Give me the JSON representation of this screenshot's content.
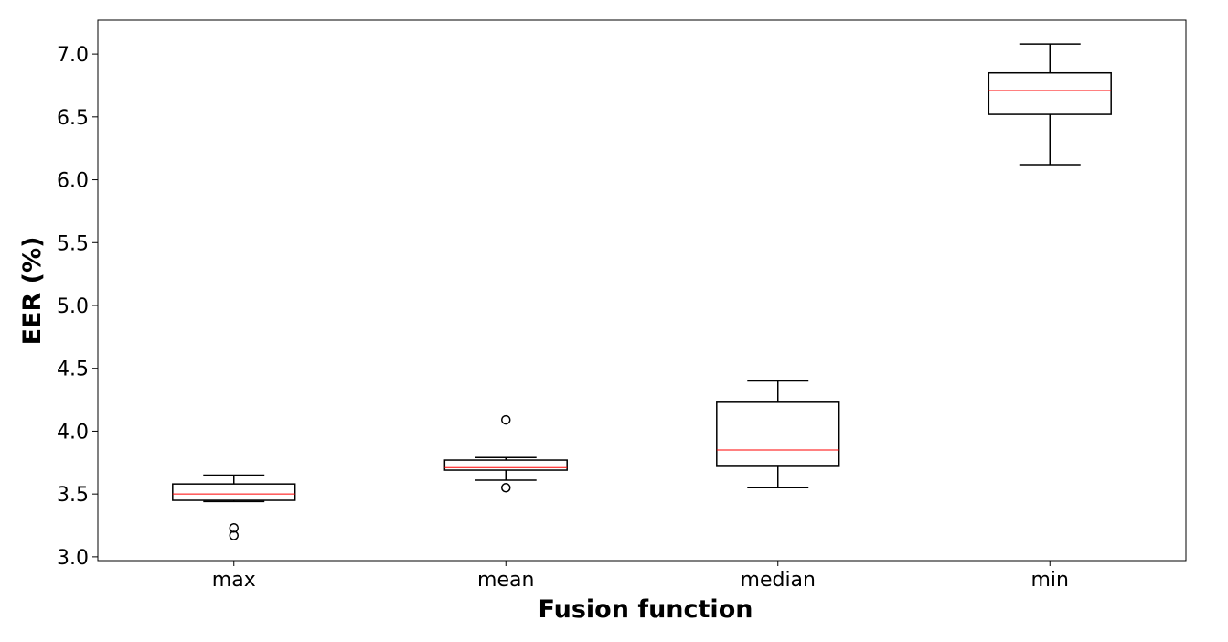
{
  "chart_data": {
    "type": "box",
    "title": "",
    "xlabel": "Fusion function",
    "ylabel": "EER (%)",
    "categories": [
      "max",
      "mean",
      "median",
      "min"
    ],
    "ylim": [
      2.97,
      7.27
    ],
    "yticks": [
      "3.0",
      "3.5",
      "4.0",
      "4.5",
      "5.0",
      "5.5",
      "6.0",
      "6.5",
      "7.0"
    ],
    "grid": false,
    "boxes": [
      {
        "category": "max",
        "whisker_low": 3.44,
        "q1": 3.45,
        "median": 3.5,
        "q3": 3.58,
        "whisker_high": 3.65,
        "outliers": [
          3.23,
          3.17
        ]
      },
      {
        "category": "mean",
        "whisker_low": 3.61,
        "q1": 3.69,
        "median": 3.71,
        "q3": 3.77,
        "whisker_high": 3.79,
        "outliers": [
          4.09,
          3.55
        ]
      },
      {
        "category": "median",
        "whisker_low": 3.55,
        "q1": 3.72,
        "median": 3.85,
        "q3": 4.23,
        "whisker_high": 4.4,
        "outliers": []
      },
      {
        "category": "min",
        "whisker_low": 6.12,
        "q1": 6.52,
        "median": 6.71,
        "q3": 6.85,
        "whisker_high": 7.08,
        "outliers": []
      }
    ],
    "colors": {
      "box": "#000000",
      "median": "#ff0000",
      "outlier": "#000000"
    }
  }
}
